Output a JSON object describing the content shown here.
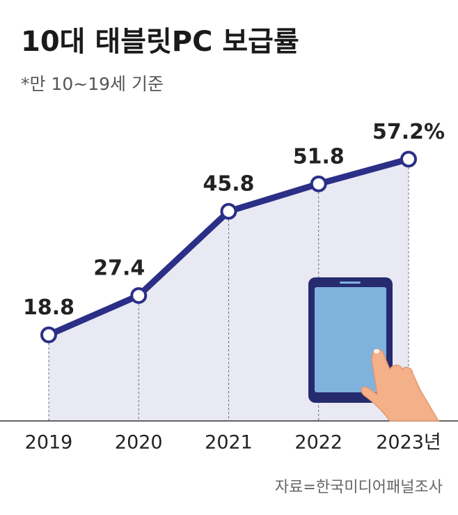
{
  "chart_data": {
    "type": "line",
    "title": "10대 태블릿PC 보급률",
    "subtitle": "*만 10~19세 기준",
    "categories": [
      "2019",
      "2020",
      "2021",
      "2022",
      "2023년"
    ],
    "values": [
      18.8,
      27.4,
      45.8,
      51.8,
      57.2
    ],
    "value_labels": [
      "18.8",
      "27.4",
      "45.8",
      "51.8",
      "57.2%"
    ],
    "color": "#2b2f86",
    "area_color": "#e9e9f4",
    "ylim": [
      0,
      60
    ],
    "source": "자료=한국미디어패널조사"
  }
}
